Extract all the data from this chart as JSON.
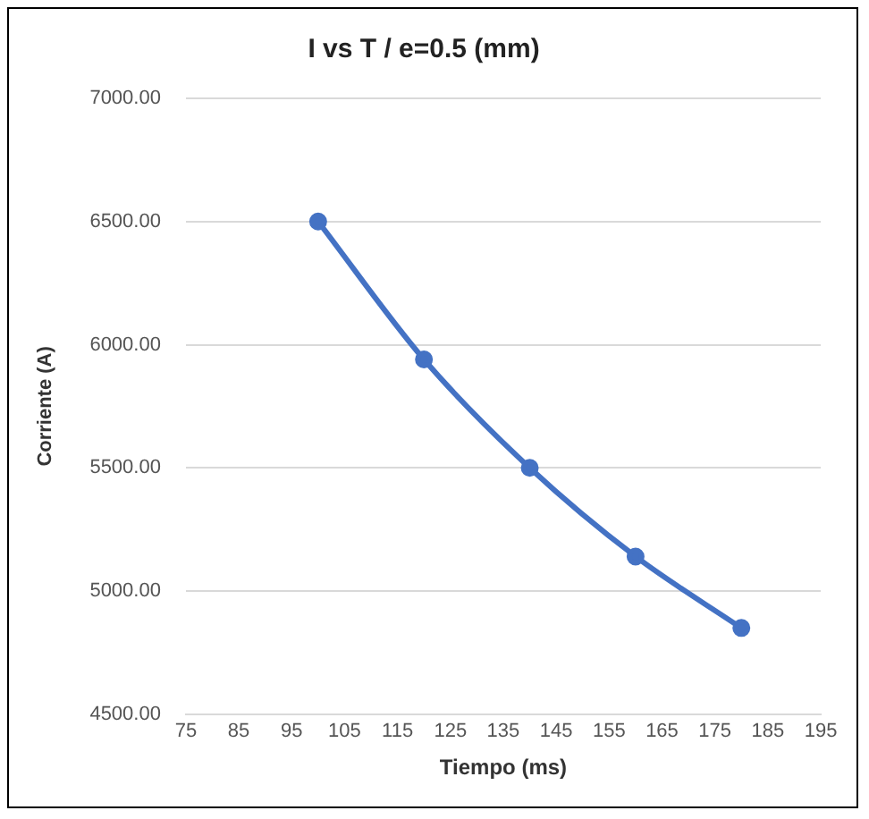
{
  "chart_data": {
    "type": "line",
    "title": "I vs T / e=0.5 (mm)",
    "xlabel": "Tiempo (ms)",
    "ylabel": "Corriente (A)",
    "x": [
      100,
      120,
      140,
      160,
      180
    ],
    "series": [
      {
        "color": "#4472c4",
        "values": [
          6500,
          5940,
          5500,
          5140,
          4850
        ]
      }
    ],
    "xlim": [
      75,
      195
    ],
    "xticks": [
      75,
      85,
      95,
      105,
      115,
      125,
      135,
      145,
      155,
      165,
      175,
      185,
      195
    ],
    "ylim": [
      4500,
      7000
    ],
    "yticks": [
      {
        "value": 4500,
        "label": "4500.00"
      },
      {
        "value": 5000,
        "label": "5000.00"
      },
      {
        "value": 5500,
        "label": "5500.00"
      },
      {
        "value": 6000,
        "label": "6000.00"
      },
      {
        "value": 6500,
        "label": "6500.00"
      },
      {
        "value": 7000,
        "label": "7000.00"
      }
    ],
    "grid": "y",
    "legend": false,
    "marker": "circle",
    "line_style": "solid"
  }
}
